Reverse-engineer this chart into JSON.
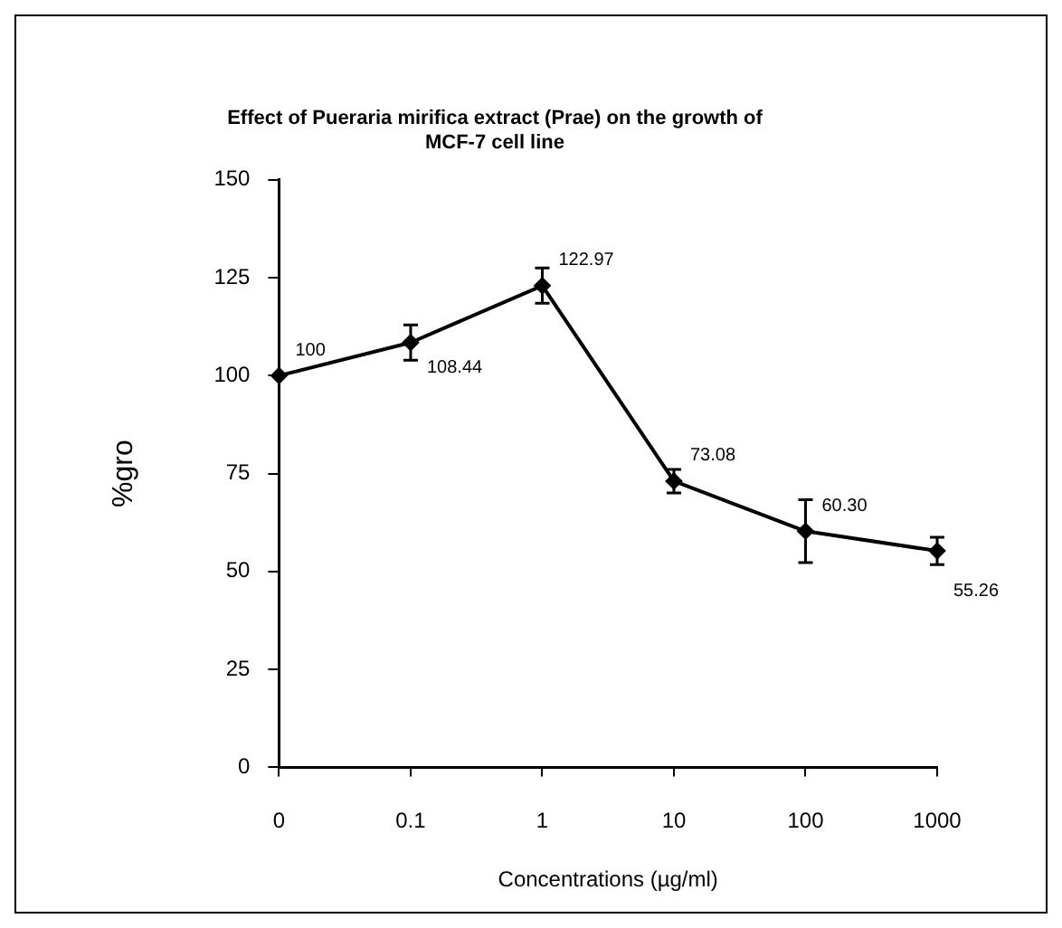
{
  "chart_data": {
    "type": "line",
    "title": [
      "Effect of Pueraria mirifica extract (Prae) on the growth of",
      "MCF-7 cell line"
    ],
    "xlabel": "Concentrations (µg/ml)",
    "ylabel": "%gro",
    "categories": [
      "0",
      "0.1",
      "1",
      "10",
      "100",
      "1000"
    ],
    "series": [
      {
        "color": "#000000",
        "values": [
          100,
          108.44,
          122.97,
          73.08,
          60.3,
          55.26
        ],
        "errors": [
          null,
          4.5,
          4.5,
          3,
          8,
          3.5
        ],
        "value_labels": [
          "100",
          "108.44",
          "122.97",
          "73.08",
          "60.30",
          "55.26"
        ]
      }
    ],
    "ylim": [
      0,
      150
    ],
    "yticks": [
      0,
      25,
      50,
      75,
      100,
      125,
      150
    ],
    "grid": false,
    "legend": false,
    "marker": "diamond",
    "line_style": "solid"
  }
}
